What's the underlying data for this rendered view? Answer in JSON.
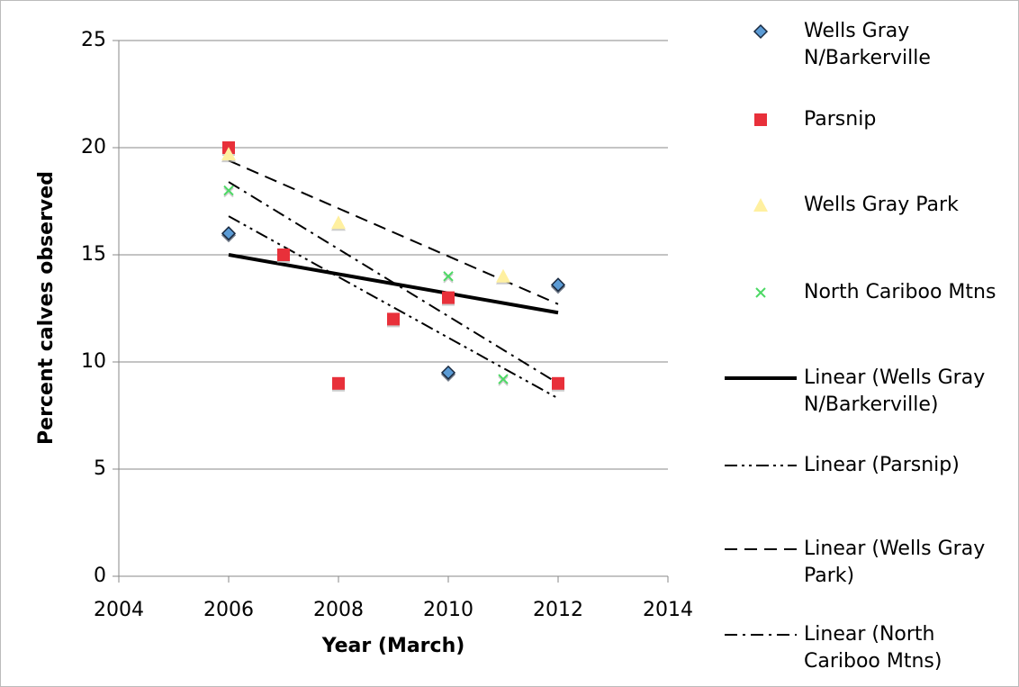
{
  "chart_data": {
    "type": "scatter",
    "x_label": "Year (March)",
    "y_label": "Percent calves observed",
    "xlim": [
      2004,
      2014
    ],
    "xticks": [
      2004,
      2006,
      2008,
      2010,
      2012,
      2014
    ],
    "ylim": [
      0,
      25
    ],
    "yticks": [
      0,
      5,
      10,
      15,
      20,
      25
    ],
    "grid": true,
    "legend": "right",
    "series": [
      {
        "name": "Wells Gray N/Barkerville",
        "marker": "diamond",
        "color": "#5b9bd5",
        "x": [
          2006,
          2010,
          2012
        ],
        "values": [
          16,
          9.5,
          13.6
        ]
      },
      {
        "name": "Parsnip",
        "marker": "square",
        "color": "#e8303a",
        "x": [
          2006,
          2007,
          2008,
          2009,
          2010,
          2012
        ],
        "values": [
          20,
          15,
          9,
          12,
          13,
          9
        ]
      },
      {
        "name": "Wells Gray Park",
        "marker": "triangle",
        "color": "#fff0a0",
        "x": [
          2006,
          2008,
          2011
        ],
        "values": [
          19.7,
          16.5,
          14
        ]
      },
      {
        "name": "North Cariboo Mtns",
        "marker": "x",
        "color": "#4cd964",
        "x": [
          2006,
          2010,
          2011
        ],
        "values": [
          18,
          14,
          9.2
        ]
      }
    ],
    "trendlines": [
      {
        "name": "Linear (Wells Gray N/Barkerville)",
        "color": "#000000",
        "width": 4,
        "dash": "none",
        "x": [
          2006,
          2012
        ],
        "values": [
          15.0,
          12.3
        ]
      },
      {
        "name": "Linear (Parsnip)",
        "color": "#000000",
        "width": 2,
        "dash": "14 5 3 5 3 5",
        "x": [
          2006,
          2012
        ],
        "values": [
          16.8,
          8.3
        ]
      },
      {
        "name": "Linear (Wells Gray Park)",
        "color": "#000000",
        "width": 2,
        "dash": "14 8",
        "x": [
          2006,
          2012
        ],
        "values": [
          19.4,
          12.7
        ]
      },
      {
        "name": "Linear (North Cariboo Mtns)",
        "color": "#000000",
        "width": 2,
        "dash": "14 6 3 6",
        "x": [
          2006,
          2012
        ],
        "values": [
          18.4,
          9.0
        ]
      }
    ]
  }
}
